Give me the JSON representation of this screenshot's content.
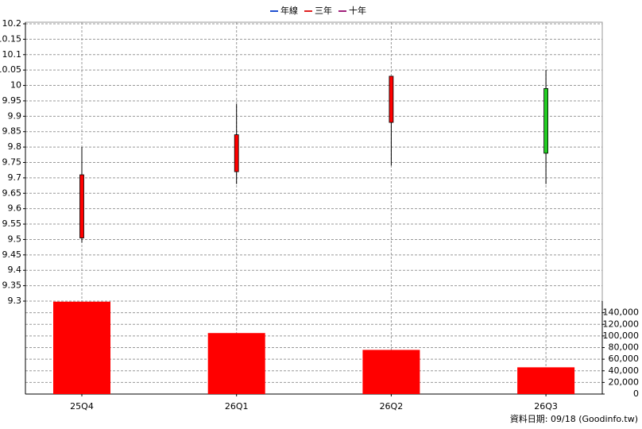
{
  "chart_data": {
    "type": "candlestick",
    "legend": [
      {
        "name": "年線",
        "color": "#1f4fd0"
      },
      {
        "name": "三年",
        "color": "#e02020"
      },
      {
        "name": "十年",
        "color": "#a0207a"
      }
    ],
    "categories": [
      "25Q4",
      "26Q1",
      "26Q2",
      "26Q3"
    ],
    "open": [
      9.505,
      9.72,
      9.88,
      9.99
    ],
    "high": [
      9.8,
      9.94,
      10.03,
      10.05
    ],
    "low": [
      9.49,
      9.68,
      9.74,
      9.68
    ],
    "close": [
      9.71,
      9.84,
      10.03,
      9.78
    ],
    "up_color": "#ff0000",
    "down_color": "#22cc22",
    "volume": [
      159000,
      105000,
      76000,
      46000
    ],
    "volume_color": "#ff0000",
    "ylim": [
      9.3,
      10.2
    ],
    "yticks": [
      9.3,
      9.35,
      9.4,
      9.45,
      9.5,
      9.55,
      9.6,
      9.65,
      9.7,
      9.75,
      9.8,
      9.85,
      9.9,
      9.95,
      10,
      10.05,
      10.1,
      10.15,
      10.2
    ],
    "y2lim": [
      0,
      160000
    ],
    "y2ticks": [
      0,
      {
        "value": 20000,
        "label": "20,000"
      },
      {
        "value": 40000,
        "label": "40,000"
      },
      {
        "value": 60000,
        "label": "60,000"
      },
      {
        "value": 80000,
        "label": "80,000"
      },
      {
        "value": 100000,
        "label": "100,000"
      },
      {
        "value": 120000,
        "label": "120,000"
      },
      {
        "value": 140000,
        "label": "140,000"
      }
    ],
    "grid": true,
    "footer": "資料日期: 09/18  (Goodinfo.tw)"
  }
}
